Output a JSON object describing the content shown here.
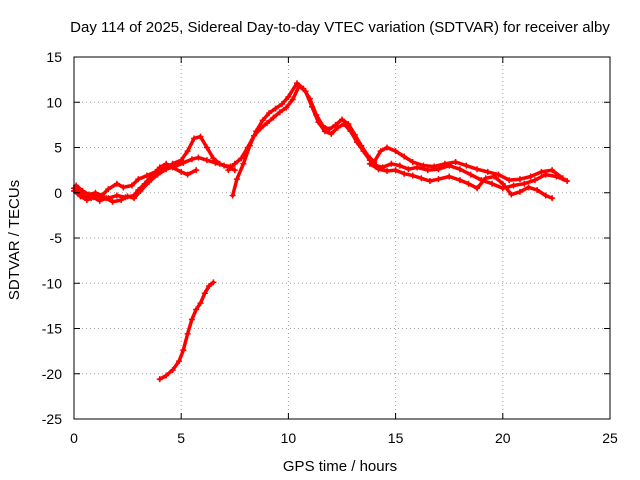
{
  "chart_data": {
    "type": "scatter",
    "title": "Day 114 of 2025, Sidereal Day-to-day VTEC variation (SDTVAR) for receiver alby",
    "xlabel": "GPS time / hours",
    "ylabel": "SDTVAR / TECUs",
    "xlim": [
      0,
      25
    ],
    "ylim": [
      -25,
      15
    ],
    "xticks": [
      0,
      5,
      10,
      15,
      20,
      25
    ],
    "yticks": [
      -25,
      -20,
      -15,
      -10,
      -5,
      0,
      5,
      10,
      15
    ],
    "grid": true,
    "legend": "none",
    "colors": {
      "series": "#ff0000",
      "grid": "#a0a0a0",
      "axis": "#000000"
    },
    "series": [
      {
        "name": "track-a",
        "points": [
          [
            0.0,
            0.5
          ],
          [
            0.3,
            0.0
          ],
          [
            0.5,
            -0.4
          ],
          [
            0.8,
            -0.6
          ],
          [
            1.0,
            -0.3
          ],
          [
            1.3,
            -0.5
          ],
          [
            1.6,
            -0.6
          ],
          [
            2.0,
            -0.3
          ],
          [
            2.4,
            -0.5
          ],
          [
            2.8,
            -0.3
          ],
          [
            3.0,
            0.3
          ],
          [
            3.3,
            1.0
          ],
          [
            3.6,
            1.8
          ],
          [
            4.0,
            2.8
          ],
          [
            4.3,
            3.2
          ],
          [
            4.6,
            2.8
          ],
          [
            5.0,
            2.3
          ],
          [
            5.3,
            2.0
          ],
          [
            5.7,
            2.5
          ]
        ]
      },
      {
        "name": "track-b",
        "points": [
          [
            0.1,
            0.8
          ],
          [
            0.4,
            0.2
          ],
          [
            0.7,
            -0.2
          ],
          [
            1.0,
            0.0
          ],
          [
            1.3,
            -0.3
          ],
          [
            1.6,
            0.4
          ],
          [
            2.0,
            1.0
          ],
          [
            2.3,
            0.6
          ],
          [
            2.7,
            0.8
          ],
          [
            3.0,
            1.5
          ],
          [
            3.4,
            1.9
          ],
          [
            3.8,
            2.3
          ],
          [
            4.2,
            2.6
          ],
          [
            4.6,
            3.2
          ],
          [
            5.0,
            3.6
          ],
          [
            5.3,
            4.6
          ],
          [
            5.6,
            6.0
          ],
          [
            5.9,
            6.2
          ],
          [
            6.2,
            5.0
          ],
          [
            6.5,
            3.8
          ],
          [
            6.8,
            3.2
          ],
          [
            7.2,
            2.8
          ],
          [
            7.5,
            2.5
          ]
        ]
      },
      {
        "name": "track-c",
        "points": [
          [
            0.0,
            0.2
          ],
          [
            0.3,
            -0.4
          ],
          [
            0.6,
            -0.8
          ],
          [
            0.9,
            -0.5
          ],
          [
            1.2,
            -0.9
          ],
          [
            1.5,
            -0.6
          ],
          [
            1.8,
            -1.0
          ],
          [
            2.2,
            -0.8
          ],
          [
            2.5,
            -0.4
          ],
          [
            2.8,
            -0.6
          ],
          [
            3.1,
            0.2
          ],
          [
            3.5,
            1.2
          ],
          [
            3.9,
            2.0
          ],
          [
            4.3,
            2.6
          ],
          [
            4.7,
            2.9
          ],
          [
            5.1,
            3.3
          ],
          [
            5.5,
            3.7
          ],
          [
            5.8,
            3.9
          ],
          [
            6.2,
            3.6
          ],
          [
            6.6,
            3.3
          ],
          [
            7.0,
            3.0
          ],
          [
            7.3,
            2.9
          ]
        ]
      },
      {
        "name": "track-d",
        "points": [
          [
            7.2,
            2.5
          ],
          [
            7.5,
            3.2
          ],
          [
            7.8,
            3.8
          ],
          [
            8.1,
            5.0
          ],
          [
            8.4,
            6.3
          ],
          [
            8.7,
            7.1
          ],
          [
            9.0,
            7.7
          ],
          [
            9.3,
            8.3
          ],
          [
            9.6,
            8.9
          ],
          [
            9.9,
            9.4
          ],
          [
            10.2,
            10.3
          ],
          [
            10.5,
            11.8
          ],
          [
            10.8,
            11.2
          ],
          [
            11.1,
            9.5
          ],
          [
            11.4,
            7.8
          ],
          [
            11.7,
            6.8
          ],
          [
            12.0,
            6.5
          ],
          [
            12.3,
            7.2
          ],
          [
            12.6,
            7.6
          ],
          [
            12.9,
            6.8
          ],
          [
            13.2,
            5.6
          ],
          [
            13.5,
            4.6
          ],
          [
            13.8,
            3.6
          ],
          [
            14.1,
            3.0
          ],
          [
            14.4,
            2.8
          ],
          [
            14.8,
            3.2
          ],
          [
            15.2,
            3.0
          ],
          [
            15.6,
            2.6
          ],
          [
            16.0,
            2.8
          ],
          [
            16.5,
            2.5
          ],
          [
            17.0,
            2.6
          ],
          [
            17.5,
            3.0
          ],
          [
            18.0,
            2.6
          ],
          [
            18.5,
            2.0
          ],
          [
            19.0,
            1.4
          ],
          [
            19.5,
            1.0
          ],
          [
            20.0,
            0.5
          ],
          [
            20.5,
            0.8
          ],
          [
            21.0,
            1.0
          ],
          [
            21.5,
            1.4
          ],
          [
            22.0,
            2.0
          ],
          [
            22.5,
            1.8
          ],
          [
            23.0,
            1.3
          ]
        ]
      },
      {
        "name": "track-e",
        "points": [
          [
            7.4,
            -0.3
          ],
          [
            7.6,
            1.5
          ],
          [
            7.9,
            3.2
          ],
          [
            8.2,
            5.2
          ],
          [
            8.5,
            6.8
          ],
          [
            8.8,
            8.0
          ],
          [
            9.1,
            8.8
          ],
          [
            9.4,
            9.3
          ],
          [
            9.7,
            9.8
          ],
          [
            10.0,
            10.6
          ],
          [
            10.4,
            12.1
          ],
          [
            10.7,
            11.5
          ],
          [
            11.0,
            10.4
          ],
          [
            11.3,
            8.6
          ],
          [
            11.6,
            7.4
          ],
          [
            11.9,
            7.0
          ],
          [
            12.2,
            7.5
          ],
          [
            12.5,
            8.1
          ],
          [
            12.8,
            7.6
          ],
          [
            13.1,
            6.4
          ],
          [
            13.4,
            5.2
          ],
          [
            13.7,
            4.1
          ],
          [
            14.0,
            3.4
          ],
          [
            14.3,
            4.6
          ],
          [
            14.6,
            5.0
          ],
          [
            15.0,
            4.6
          ],
          [
            15.4,
            4.0
          ],
          [
            15.8,
            3.4
          ],
          [
            16.3,
            3.0
          ],
          [
            16.8,
            2.9
          ],
          [
            17.3,
            3.2
          ],
          [
            17.8,
            3.4
          ],
          [
            18.3,
            3.0
          ],
          [
            18.8,
            2.6
          ],
          [
            19.3,
            2.3
          ],
          [
            19.8,
            2.0
          ],
          [
            20.3,
            1.4
          ],
          [
            20.8,
            1.5
          ],
          [
            21.3,
            1.8
          ],
          [
            21.8,
            2.3
          ],
          [
            22.3,
            2.5
          ],
          [
            22.8,
            1.6
          ]
        ]
      },
      {
        "name": "track-f",
        "points": [
          [
            13.8,
            3.2
          ],
          [
            14.2,
            2.6
          ],
          [
            14.6,
            2.4
          ],
          [
            15.0,
            2.5
          ],
          [
            15.4,
            2.1
          ],
          [
            15.8,
            1.9
          ],
          [
            16.2,
            1.6
          ],
          [
            16.6,
            1.3
          ],
          [
            17.0,
            1.5
          ],
          [
            17.5,
            1.8
          ],
          [
            18.0,
            1.4
          ],
          [
            18.4,
            1.0
          ],
          [
            18.8,
            0.5
          ],
          [
            19.2,
            1.6
          ],
          [
            19.6,
            1.8
          ],
          [
            20.0,
            1.0
          ],
          [
            20.4,
            -0.2
          ],
          [
            20.8,
            0.1
          ],
          [
            21.2,
            0.6
          ],
          [
            21.6,
            0.3
          ],
          [
            22.0,
            -0.3
          ],
          [
            22.3,
            -0.6
          ]
        ]
      },
      {
        "name": "track-g",
        "points": [
          [
            4.0,
            -20.6
          ],
          [
            4.3,
            -20.2
          ],
          [
            4.6,
            -19.6
          ],
          [
            4.9,
            -18.6
          ],
          [
            5.1,
            -17.4
          ],
          [
            5.3,
            -15.6
          ],
          [
            5.5,
            -14.0
          ],
          [
            5.7,
            -12.9
          ],
          [
            5.9,
            -12.2
          ],
          [
            6.1,
            -11.1
          ],
          [
            6.3,
            -10.3
          ],
          [
            6.5,
            -9.9
          ]
        ]
      }
    ]
  }
}
